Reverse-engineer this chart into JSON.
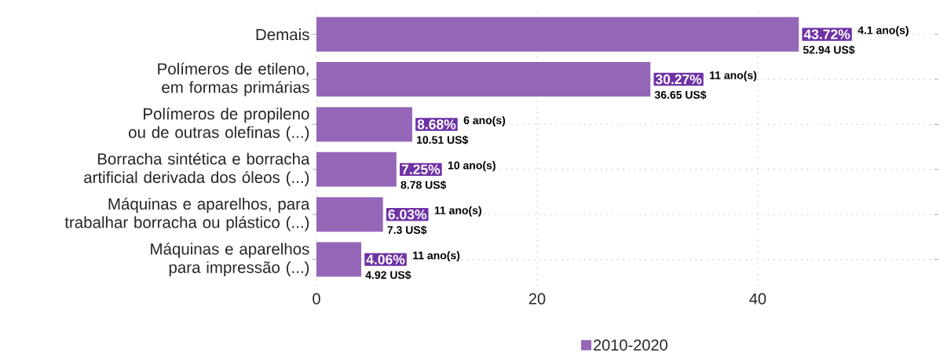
{
  "chart_data": {
    "type": "bar",
    "orientation": "horizontal",
    "categories": [
      "Demais",
      "Polímeros de etileno, em formas primárias",
      "Polímeros de propileno ou de outras olefinas (...)",
      "Borracha sintética e borracha artificial derivada dos óleos (...)",
      "Máquinas e aparelhos, para trabalhar borracha ou plástico (...)",
      "Máquinas e aparelhos para impressão (...)"
    ],
    "series": [
      {
        "name": "2010-2020",
        "color": "#9466b8",
        "values": [
          43.72,
          30.27,
          8.68,
          7.25,
          6.03,
          4.06
        ],
        "value_labels": [
          "43.72%",
          "30.27%",
          "8.68%",
          "7.25%",
          "6.03%",
          "4.06%"
        ]
      }
    ],
    "xlim": [
      0,
      56
    ],
    "xticks": [
      0,
      20,
      40
    ],
    "grid": true,
    "legend": "bottom",
    "annotations": [
      "4.1  ano(s)",
      {
        "text": "52.94 US$",
        "x": 43.72,
        "y": "Demais"
      },
      "11  ano(s)",
      {
        "text": "36.65 US$",
        "x": 30.27,
        "y": "Polímeros de etileno, em formas primárias"
      },
      "6  ano(s)",
      {
        "text": "10.51 US$",
        "x": 8.68,
        "y": "Polímeros de propileno ou de outras olefinas (...)"
      },
      "10  ano(s)",
      {
        "text": "8.78 US$",
        "x": 7.25,
        "y": "Borracha sintética e borracha artificial derivada dos óleos (...)"
      },
      "11  ano(s)",
      {
        "text": "7.3 US$",
        "x": 6.03,
        "y": "Máquinas e aparelhos, para trabalhar borracha ou plástico (...)"
      },
      "11  ano(s)",
      {
        "text": "4.92 US$",
        "x": 4.06,
        "y": "Máquinas e aparelhos para impressão (...)"
      }
    ]
  }
}
